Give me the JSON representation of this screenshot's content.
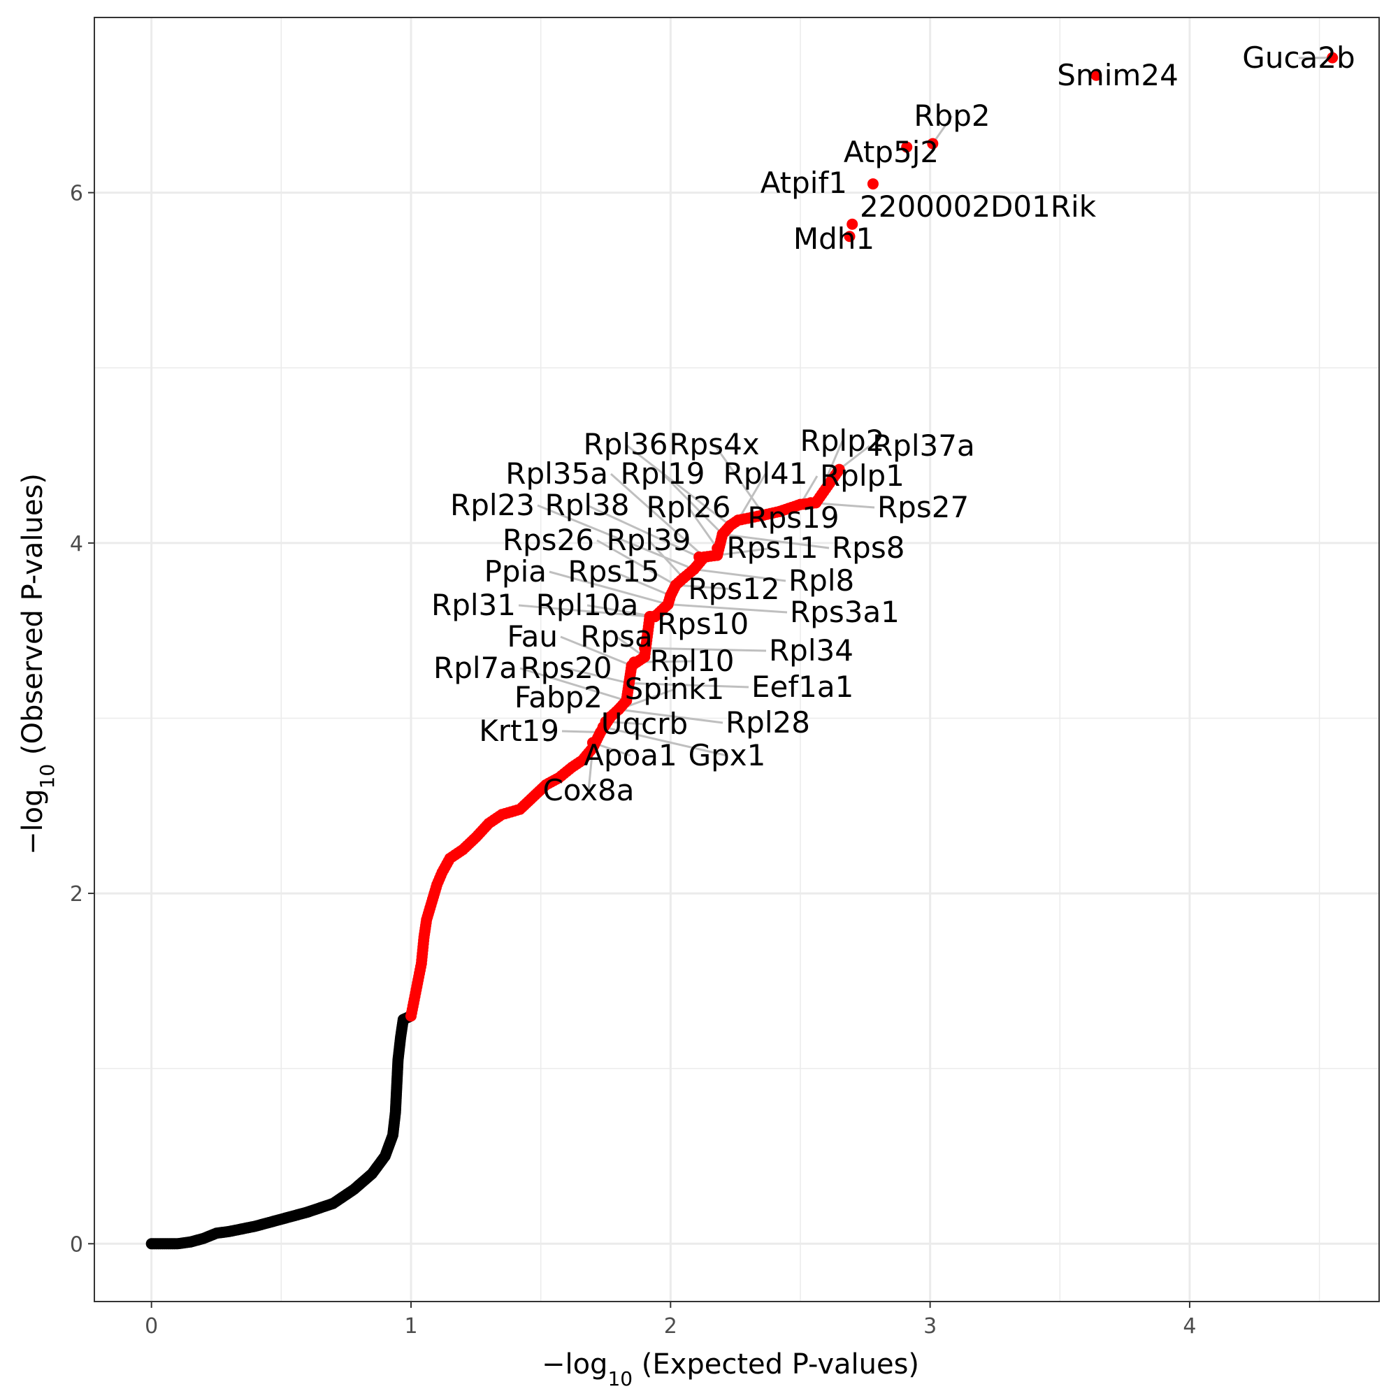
{
  "chart_data": {
    "type": "scatter",
    "title": "",
    "xlabel": {
      "prefix": "−log",
      "sub": "10",
      "suffix": " (Expected P-values)"
    },
    "ylabel": {
      "prefix": "−log",
      "sub": "10",
      "suffix": " (Observed P-values)"
    },
    "xlim": [
      -0.22,
      4.73
    ],
    "ylim": [
      -0.33,
      7.0
    ],
    "x_ticks": [
      0,
      1,
      2,
      3,
      4
    ],
    "x_tick_labels": [
      "0",
      "1",
      "2",
      "3",
      "4"
    ],
    "y_ticks": [
      0,
      2,
      4,
      6
    ],
    "y_tick_labels": [
      "0",
      "2",
      "4",
      "6"
    ],
    "grid": true,
    "colors": {
      "significant": "#ff0000",
      "background": "#000000",
      "connector": "#bfbfbf",
      "grid": "#ebebeb"
    },
    "curve_black": [
      [
        0.0,
        0.0
      ],
      [
        0.1,
        0.0
      ],
      [
        0.15,
        0.01
      ],
      [
        0.2,
        0.03
      ],
      [
        0.25,
        0.06
      ],
      [
        0.3,
        0.07
      ],
      [
        0.4,
        0.1
      ],
      [
        0.5,
        0.14
      ],
      [
        0.6,
        0.18
      ],
      [
        0.7,
        0.23
      ],
      [
        0.78,
        0.31
      ],
      [
        0.85,
        0.4
      ],
      [
        0.9,
        0.5
      ],
      [
        0.93,
        0.62
      ],
      [
        0.94,
        0.75
      ],
      [
        0.945,
        0.9
      ],
      [
        0.95,
        1.05
      ],
      [
        0.96,
        1.18
      ],
      [
        0.97,
        1.28
      ],
      [
        1.0,
        1.3
      ]
    ],
    "curve_red": [
      [
        1.0,
        1.3
      ],
      [
        1.02,
        1.45
      ],
      [
        1.04,
        1.6
      ],
      [
        1.05,
        1.75
      ],
      [
        1.06,
        1.85
      ],
      [
        1.08,
        1.95
      ],
      [
        1.1,
        2.05
      ],
      [
        1.12,
        2.12
      ],
      [
        1.15,
        2.2
      ],
      [
        1.2,
        2.25
      ],
      [
        1.25,
        2.32
      ],
      [
        1.3,
        2.4
      ],
      [
        1.35,
        2.45
      ],
      [
        1.42,
        2.48
      ],
      [
        1.47,
        2.55
      ],
      [
        1.52,
        2.62
      ],
      [
        1.57,
        2.66
      ],
      [
        1.62,
        2.72
      ],
      [
        1.66,
        2.76
      ],
      [
        1.7,
        2.83
      ],
      [
        1.73,
        2.92
      ],
      [
        1.77,
        3.01
      ],
      [
        1.8,
        3.05
      ],
      [
        1.83,
        3.1
      ],
      [
        1.84,
        3.2
      ],
      [
        1.85,
        3.3
      ],
      [
        1.9,
        3.35
      ],
      [
        1.92,
        3.58
      ],
      [
        1.94,
        3.58
      ],
      [
        1.99,
        3.65
      ],
      [
        2.0,
        3.7
      ],
      [
        2.02,
        3.76
      ],
      [
        2.05,
        3.8
      ],
      [
        2.09,
        3.85
      ],
      [
        2.13,
        3.92
      ],
      [
        2.18,
        3.93
      ],
      [
        2.2,
        4.05
      ],
      [
        2.23,
        4.1
      ],
      [
        2.26,
        4.13
      ],
      [
        2.36,
        4.16
      ],
      [
        2.42,
        4.18
      ],
      [
        2.5,
        4.22
      ],
      [
        2.56,
        4.23
      ],
      [
        2.65,
        4.42
      ]
    ],
    "labeled_points": [
      {
        "gene": "Guca2b",
        "x": 4.55,
        "y": 6.77,
        "anchor": "middle"
      },
      {
        "gene": "Smim24",
        "x": 3.64,
        "y": 6.67,
        "anchor": "middle"
      },
      {
        "gene": "Rbp2",
        "x": 3.01,
        "y": 6.28,
        "anchor": "middle"
      },
      {
        "gene": "Atp5j2",
        "x": 2.91,
        "y": 6.26,
        "anchor": "middle"
      },
      {
        "gene": "Atpif1",
        "x": 2.78,
        "y": 6.05,
        "anchor": "end"
      },
      {
        "gene": "2200002D01Rik",
        "x": 2.7,
        "y": 5.82,
        "anchor": "start"
      },
      {
        "gene": "Mdh1",
        "x": 2.69,
        "y": 5.75,
        "anchor": "middle"
      },
      {
        "gene": "Rpl37a",
        "x": 2.65,
        "y": 4.42,
        "anchor": "start"
      },
      {
        "gene": "Rplp2",
        "x": 2.56,
        "y": 4.23,
        "anchor": "middle"
      },
      {
        "gene": "Rplp1",
        "x": 2.5,
        "y": 4.22,
        "anchor": "start"
      },
      {
        "gene": "Rps27",
        "x": 2.54,
        "y": 4.23,
        "anchor": "start"
      },
      {
        "gene": "Rps19",
        "x": 2.42,
        "y": 4.18,
        "anchor": "middle"
      },
      {
        "gene": "Rps4x",
        "x": 2.36,
        "y": 4.16,
        "anchor": "middle"
      },
      {
        "gene": "Rpl41",
        "x": 2.26,
        "y": 4.13,
        "anchor": "middle"
      },
      {
        "gene": "Rpl36",
        "x": 2.23,
        "y": 4.1,
        "anchor": "middle"
      },
      {
        "gene": "Rps8",
        "x": 2.2,
        "y": 4.05,
        "anchor": "start"
      },
      {
        "gene": "Rpl19",
        "x": 2.2,
        "y": 4.05,
        "anchor": "middle"
      },
      {
        "gene": "Rpl26",
        "x": 2.18,
        "y": 3.97,
        "anchor": "middle"
      },
      {
        "gene": "Rps11",
        "x": 2.18,
        "y": 3.93,
        "anchor": "middle"
      },
      {
        "gene": "Rpl35a",
        "x": 2.13,
        "y": 3.92,
        "anchor": "end"
      },
      {
        "gene": "Rpl38",
        "x": 2.11,
        "y": 3.92,
        "anchor": "middle"
      },
      {
        "gene": "Rpl23",
        "x": 2.09,
        "y": 3.85,
        "anchor": "end"
      },
      {
        "gene": "Rpl8",
        "x": 2.09,
        "y": 3.85,
        "anchor": "start"
      },
      {
        "gene": "Rpl39",
        "x": 2.05,
        "y": 3.8,
        "anchor": "middle"
      },
      {
        "gene": "Rps26",
        "x": 2.02,
        "y": 3.76,
        "anchor": "end"
      },
      {
        "gene": "Rps12",
        "x": 2.02,
        "y": 3.76,
        "anchor": "middle"
      },
      {
        "gene": "Rps15",
        "x": 2.0,
        "y": 3.7,
        "anchor": "middle"
      },
      {
        "gene": "Ppia",
        "x": 1.99,
        "y": 3.65,
        "anchor": "end"
      },
      {
        "gene": "Rps3a1",
        "x": 1.99,
        "y": 3.65,
        "anchor": "start"
      },
      {
        "gene": "Rpl10a",
        "x": 1.94,
        "y": 3.58,
        "anchor": "middle"
      },
      {
        "gene": "Rpl31",
        "x": 1.92,
        "y": 3.58,
        "anchor": "end"
      },
      {
        "gene": "Rps10",
        "x": 1.92,
        "y": 3.58,
        "anchor": "start"
      },
      {
        "gene": "Rpl34",
        "x": 1.9,
        "y": 3.4,
        "anchor": "start"
      },
      {
        "gene": "Rpsa",
        "x": 1.9,
        "y": 3.35,
        "anchor": "middle"
      },
      {
        "gene": "Fau",
        "x": 1.85,
        "y": 3.3,
        "anchor": "end"
      },
      {
        "gene": "Rpl10",
        "x": 1.86,
        "y": 3.32,
        "anchor": "middle"
      },
      {
        "gene": "Eef1a1",
        "x": 1.84,
        "y": 3.2,
        "anchor": "start"
      },
      {
        "gene": "Rps20",
        "x": 1.84,
        "y": 3.2,
        "anchor": "middle"
      },
      {
        "gene": "Rpl7a",
        "x": 1.83,
        "y": 3.1,
        "anchor": "end"
      },
      {
        "gene": "Spink1",
        "x": 1.8,
        "y": 3.05,
        "anchor": "middle"
      },
      {
        "gene": "Rpl28",
        "x": 1.8,
        "y": 3.05,
        "anchor": "start"
      },
      {
        "gene": "Fabp2",
        "x": 1.77,
        "y": 3.01,
        "anchor": "end"
      },
      {
        "gene": "Uqcrb",
        "x": 1.75,
        "y": 2.98,
        "anchor": "middle"
      },
      {
        "gene": "Gpx1",
        "x": 1.74,
        "y": 2.95,
        "anchor": "middle"
      },
      {
        "gene": "Krt19",
        "x": 1.73,
        "y": 2.92,
        "anchor": "end"
      },
      {
        "gene": "Apoa1",
        "x": 1.7,
        "y": 2.86,
        "anchor": "middle"
      },
      {
        "gene": "Cox8a",
        "x": 1.7,
        "y": 2.83,
        "anchor": "middle"
      }
    ]
  }
}
